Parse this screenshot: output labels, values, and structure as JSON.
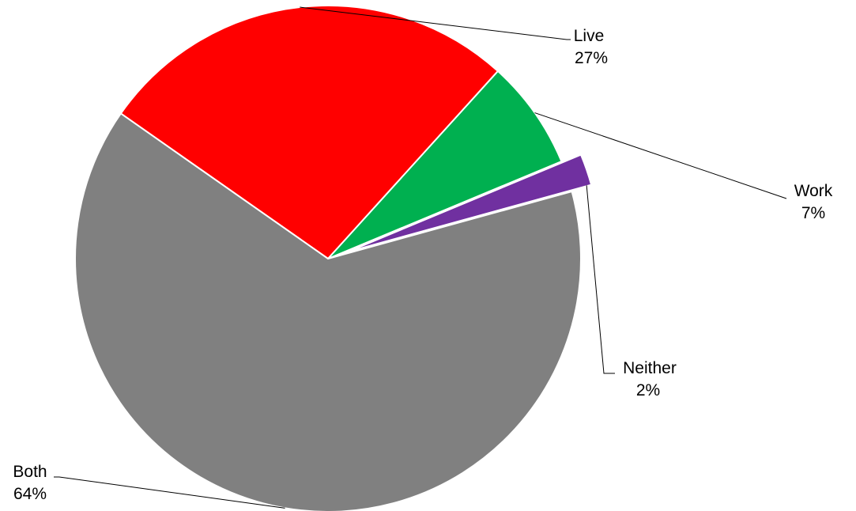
{
  "chart_data": {
    "type": "pie",
    "title": "",
    "slices": [
      {
        "label": "Live",
        "value": 27,
        "value_label": "27%",
        "color": "#ff0000"
      },
      {
        "label": "Work",
        "value": 7,
        "value_label": "7%",
        "color": "#00b050"
      },
      {
        "label": "Neither",
        "value": 2,
        "value_label": "2%",
        "color": "#7030a0",
        "exploded": true
      },
      {
        "label": "Both",
        "value": 64,
        "value_label": "64%",
        "color": "#808080"
      }
    ],
    "legend": "none",
    "data_labels": "outside-with-leader-lines"
  }
}
